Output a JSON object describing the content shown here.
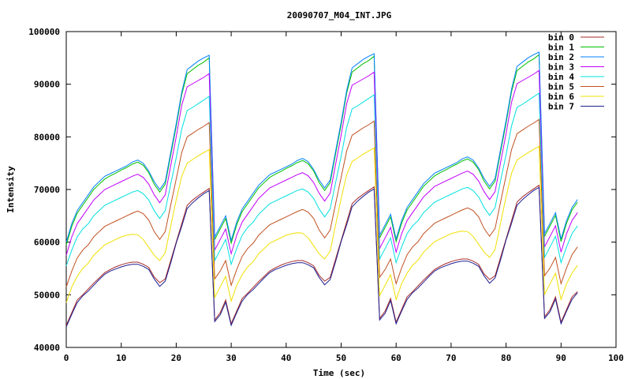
{
  "chart_data": {
    "type": "line",
    "title": "20090707_M04_INT.JPG",
    "xlabel": "Time (sec)",
    "ylabel": "Intensity",
    "xlim": [
      0,
      100
    ],
    "ylim": [
      40000,
      100000
    ],
    "x_ticks": [
      "0",
      "10",
      "20",
      "30",
      "40",
      "50",
      "60",
      "70",
      "80",
      "90",
      "100"
    ],
    "y_ticks": [
      "40000",
      "50000",
      "60000",
      "70000",
      "80000",
      "90000",
      "100000"
    ],
    "grid": false,
    "legend_position": "top-right",
    "x": [
      0,
      1,
      2,
      3,
      4,
      5,
      6,
      7,
      8,
      9,
      10,
      11,
      12,
      13,
      14,
      15,
      16,
      17,
      18,
      19,
      20,
      21,
      22,
      23,
      24,
      25,
      26,
      27,
      28,
      29,
      30,
      31,
      32,
      33,
      34,
      35,
      36,
      37,
      38,
      39,
      40,
      41,
      42,
      43,
      44,
      45,
      46,
      47,
      48,
      49,
      50,
      51,
      52,
      53,
      54,
      55,
      56,
      57,
      58,
      59,
      60,
      61,
      62,
      63,
      64,
      65,
      66,
      67,
      68,
      69,
      70,
      71,
      72,
      73,
      74,
      75,
      76,
      77,
      78,
      79,
      80,
      81,
      82,
      83,
      84,
      85,
      86,
      87,
      88,
      89,
      90,
      91,
      92,
      93
    ],
    "series": [
      {
        "name": "bin 0",
        "color": "#a52a2a",
        "profile": [
          44.2,
          46.6,
          49.0,
          50.0,
          51.1,
          52.2,
          53.2,
          54.2,
          54.8,
          55.3,
          55.7,
          56.0,
          56.2,
          56.2,
          55.8,
          55.2,
          53.4,
          52.3,
          53.0,
          56.5,
          60.0,
          63.5,
          67.0,
          68.0,
          68.8,
          69.5,
          70.2,
          45.2,
          46.6,
          49.0
        ],
        "amp": 1.0
      },
      {
        "name": "bin 1",
        "color": "#00c000",
        "profile": [
          59.5,
          63.0,
          65.5,
          67.0,
          68.5,
          70.0,
          71.0,
          72.0,
          72.6,
          73.1,
          73.7,
          74.2,
          74.8,
          75.2,
          74.6,
          73.2,
          71.0,
          69.5,
          71.0,
          76.5,
          82.0,
          88.0,
          92.0,
          92.8,
          93.6,
          94.2,
          95.0,
          60.5,
          62.5,
          64.5
        ],
        "amp": 1.0
      },
      {
        "name": "bin 2",
        "color": "#0080ff",
        "profile": [
          60.0,
          63.5,
          66.0,
          67.5,
          69.0,
          70.5,
          71.5,
          72.5,
          73.0,
          73.5,
          74.0,
          74.5,
          75.2,
          75.6,
          75.0,
          73.5,
          71.5,
          70.0,
          71.5,
          77.0,
          82.5,
          88.5,
          92.8,
          93.6,
          94.4,
          95.0,
          95.5,
          61.0,
          63.0,
          65.0
        ],
        "amp": 1.0
      },
      {
        "name": "bin 3",
        "color": "#c000ff",
        "profile": [
          57.5,
          61.0,
          63.5,
          65.0,
          66.5,
          68.0,
          69.0,
          70.0,
          70.5,
          71.0,
          71.5,
          72.0,
          72.5,
          72.9,
          72.3,
          71.0,
          69.0,
          67.5,
          69.0,
          74.5,
          80.0,
          86.0,
          89.5,
          90.1,
          90.7,
          91.3,
          92.0,
          58.5,
          60.5,
          62.5
        ],
        "amp": 1.0
      },
      {
        "name": "bin 4",
        "color": "#00e0e0",
        "profile": [
          55.5,
          58.5,
          61.0,
          62.5,
          63.5,
          65.0,
          66.0,
          67.0,
          67.5,
          68.0,
          68.5,
          69.0,
          69.5,
          69.8,
          69.2,
          68.0,
          66.0,
          64.5,
          66.0,
          71.0,
          76.0,
          81.5,
          85.0,
          85.6,
          86.3,
          87.0,
          87.7,
          56.5,
          58.5,
          60.5
        ],
        "amp": 1.0
      },
      {
        "name": "bin 5",
        "color": "#c05020",
        "profile": [
          51.5,
          54.5,
          57.0,
          58.5,
          59.5,
          61.0,
          62.0,
          63.0,
          63.5,
          64.0,
          64.5,
          65.0,
          65.5,
          65.9,
          65.4,
          64.2,
          62.0,
          60.5,
          62.0,
          67.0,
          72.0,
          77.0,
          80.0,
          80.7,
          81.4,
          82.0,
          82.7,
          53.0,
          54.5,
          56.5
        ],
        "amp": 1.0
      },
      {
        "name": "bin 6",
        "color": "#f0e000",
        "profile": [
          48.5,
          51.5,
          53.5,
          55.0,
          56.0,
          57.5,
          58.5,
          59.5,
          60.0,
          60.5,
          61.0,
          61.3,
          61.5,
          61.4,
          60.5,
          59.0,
          57.5,
          56.5,
          58.0,
          63.0,
          68.0,
          72.5,
          75.0,
          75.7,
          76.4,
          77.0,
          77.6,
          49.5,
          51.5,
          53.5
        ],
        "amp": 1.0
      },
      {
        "name": "bin 7",
        "color": "#202090",
        "profile": [
          43.9,
          46.3,
          48.5,
          49.8,
          50.7,
          51.8,
          52.9,
          53.9,
          54.5,
          54.9,
          55.3,
          55.6,
          55.8,
          55.8,
          55.4,
          54.8,
          53.0,
          51.6,
          52.6,
          56.0,
          59.8,
          63.0,
          66.4,
          67.5,
          68.4,
          69.2,
          69.8,
          44.9,
          46.2,
          48.6
        ],
        "amp": 1.0
      }
    ],
    "cycle_period": 30,
    "cycle_offsets": [
      0,
      0.3,
      0.6
    ]
  }
}
